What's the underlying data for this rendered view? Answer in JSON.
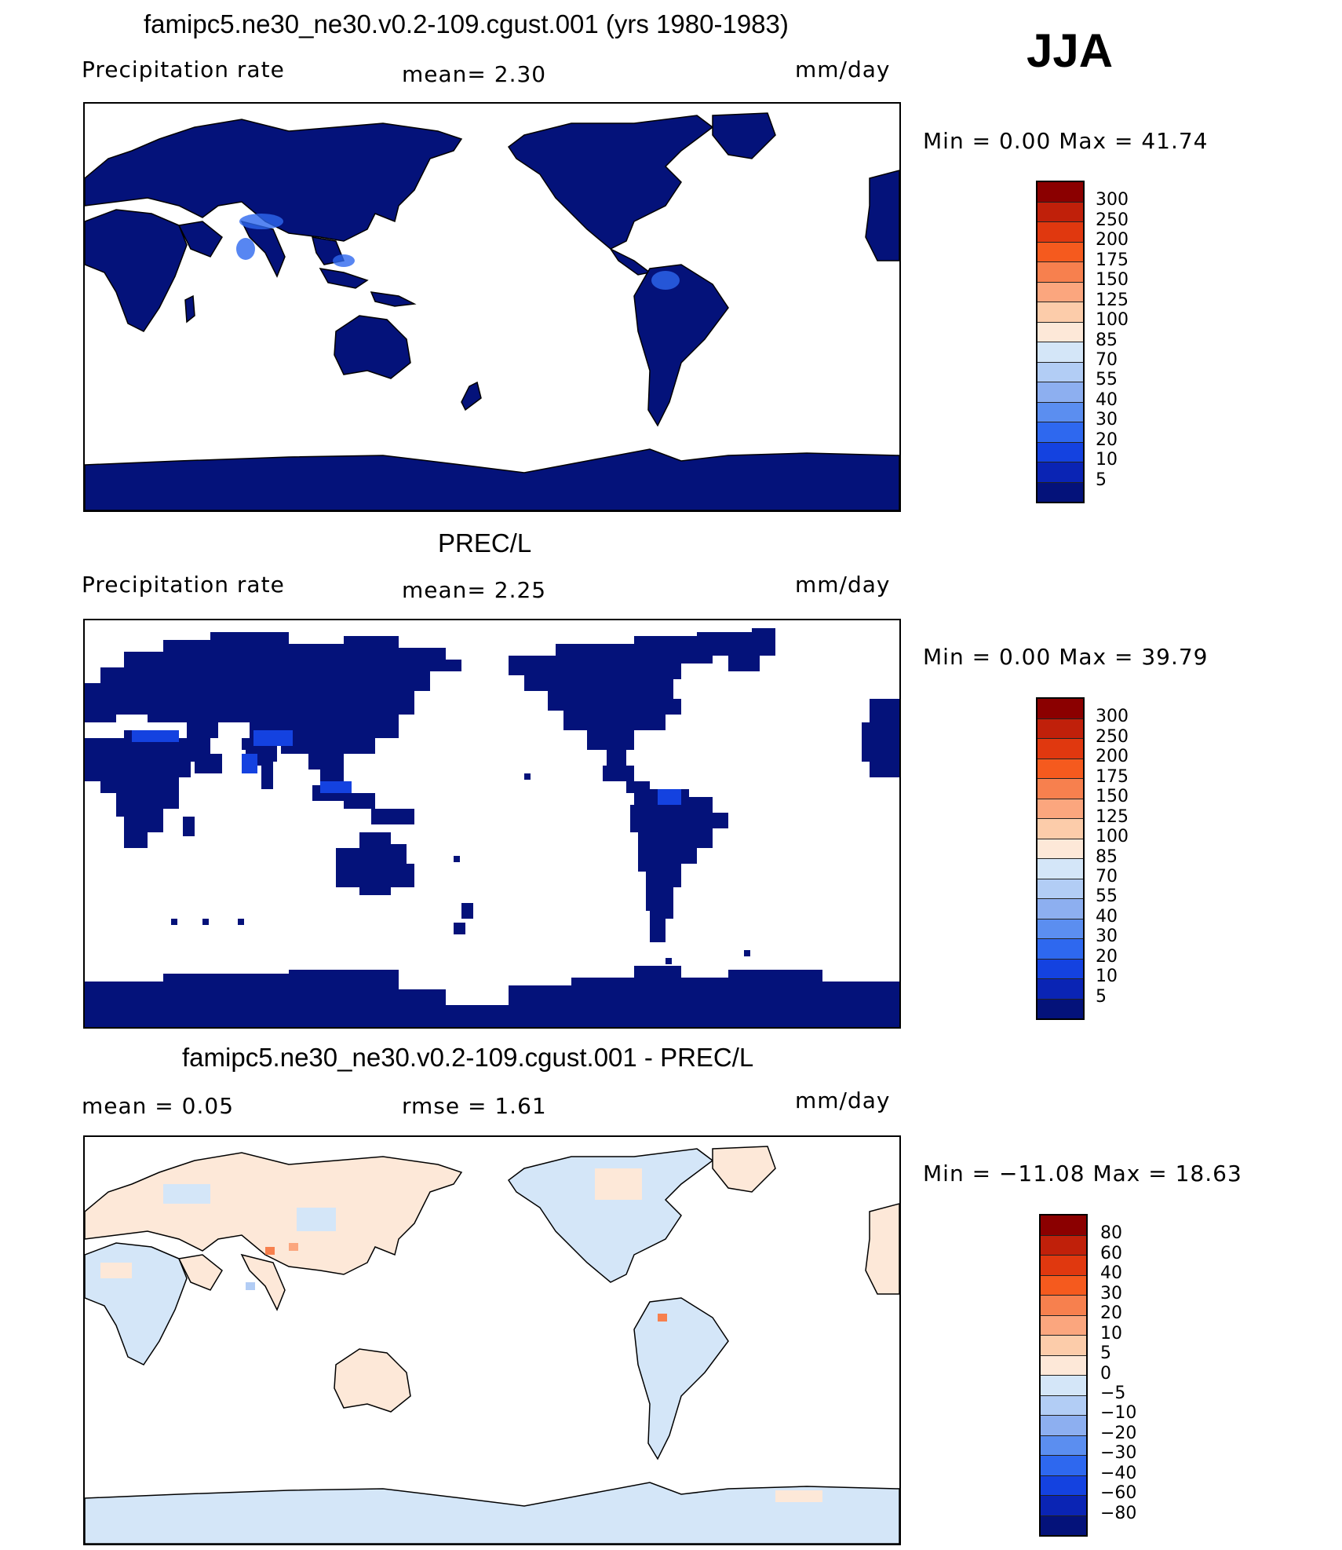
{
  "header": {
    "label": "JJA"
  },
  "panels": [
    {
      "title": "famipc5.ne30_ne30.v0.2-109.cgust.001 (yrs 1980-1983)",
      "left_label": "Precipitation  rate",
      "center_label": "mean=    2.30",
      "units": "mm/day",
      "minmax": "Min  =    0.00  Max  =    41.74",
      "map": "model-precip",
      "colorbar": {
        "ticks": [
          "300",
          "250",
          "200",
          "175",
          "150",
          "125",
          "100",
          "85",
          "70",
          "55",
          "40",
          "30",
          "20",
          "10",
          "5"
        ],
        "colors": [
          "#8b0000",
          "#c0200a",
          "#e0380f",
          "#f55a1e",
          "#f7804e",
          "#fba67e",
          "#fcccaa",
          "#fde8d8",
          "#d4e6f8",
          "#b2cdf5",
          "#8daff0",
          "#5b8ef0",
          "#2e68ef",
          "#1442e0",
          "#0a24b4",
          "#04127a"
        ]
      }
    },
    {
      "title": "PREC/L",
      "left_label": "Precipitation  rate",
      "center_label": "mean=    2.25",
      "units": "mm/day",
      "minmax": "Min  =    0.00  Max  =    39.79",
      "map": "obs-precip",
      "colorbar": {
        "ticks": [
          "300",
          "250",
          "200",
          "175",
          "150",
          "125",
          "100",
          "85",
          "70",
          "55",
          "40",
          "30",
          "20",
          "10",
          "5"
        ],
        "colors": [
          "#8b0000",
          "#c0200a",
          "#e0380f",
          "#f55a1e",
          "#f7804e",
          "#fba67e",
          "#fcccaa",
          "#fde8d8",
          "#d4e6f8",
          "#b2cdf5",
          "#8daff0",
          "#5b8ef0",
          "#2e68ef",
          "#1442e0",
          "#0a24b4",
          "#04127a"
        ]
      }
    },
    {
      "title": "famipc5.ne30_ne30.v0.2-109.cgust.001 - PREC/L",
      "left_label": "mean  =     0.05",
      "center_label": "rmse  =     1.61",
      "units": "mm/day",
      "minmax": "Min  = −11.08  Max  =    18.63",
      "map": "difference",
      "colorbar": {
        "ticks": [
          "80",
          "60",
          "40",
          "30",
          "20",
          "10",
          "5",
          "0",
          "−5",
          "−10",
          "−20",
          "−30",
          "−40",
          "−60",
          "−80"
        ],
        "colors": [
          "#8b0000",
          "#c0200a",
          "#e0380f",
          "#f55a1e",
          "#f7804e",
          "#fba67e",
          "#fcccaa",
          "#fde8d8",
          "#d4e6f8",
          "#b2cdf5",
          "#8daff0",
          "#5b8ef0",
          "#2e68ef",
          "#1442e0",
          "#0a24b4",
          "#04127a"
        ]
      }
    }
  ],
  "map_colors": {
    "land_precip": "#04127a",
    "land_precip_wet": "#2e68ef",
    "ocean": "#ffffff",
    "diff_pos": "#fde8d8",
    "diff_neg": "#d4e6f8",
    "diff_strong": "#f7804e"
  }
}
